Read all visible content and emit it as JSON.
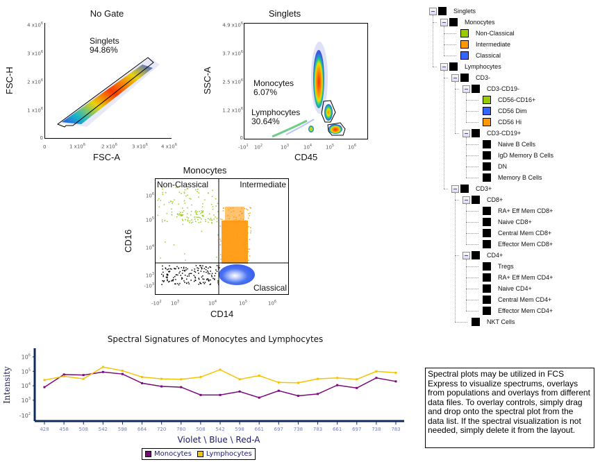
{
  "plots": {
    "no_gate": {
      "title": "No Gate",
      "x_label": "FSC-A",
      "y_label": "FSC-H",
      "x_ticks": [
        "0",
        "1 x10",
        "2 x10",
        "3 x10",
        "4 x10"
      ],
      "y_ticks": [
        "4 x10",
        "3 x10",
        "2 x10",
        "1 x10",
        "0"
      ],
      "exp": "6",
      "gate": {
        "name": "Singlets",
        "percent": "94.86%"
      }
    },
    "singlets": {
      "title": "Singlets",
      "x_label": "CD45",
      "y_label": "SSC-A",
      "x_ticks": [
        "-10",
        "10",
        "10",
        "10",
        "10",
        "10"
      ],
      "x_tick_exps": [
        "1",
        "2",
        "3",
        "4",
        "5",
        "6"
      ],
      "y_ticks": [
        "4.9 x10",
        "3.7 x10",
        "2.5 x10",
        "1.2 x10",
        "0"
      ],
      "exp": "6",
      "gates": [
        {
          "name": "Monocytes",
          "percent": "6.07%"
        },
        {
          "name": "Lymphocytes",
          "percent": "30.64%"
        }
      ]
    },
    "monocytes": {
      "title": "Monocytes",
      "x_label": "CD14",
      "y_label": "CD16",
      "x_ticks": [
        "-10",
        "10",
        "10",
        "10",
        "10"
      ],
      "x_tick_exps": [
        "2",
        "3",
        "4",
        "5",
        "6"
      ],
      "y_ticks": [
        "10",
        "10",
        "10",
        "10",
        "-10"
      ],
      "y_tick_exps": [
        "6",
        "5",
        "4",
        "3",
        "3"
      ],
      "quadrants": {
        "top_left": "Non-Classical",
        "top_right": "Intermediate",
        "bottom_right": "Classical"
      }
    }
  },
  "gate_tree": [
    {
      "label": "Singlets",
      "level": 0,
      "color": "#000000",
      "toggle": true
    },
    {
      "label": "Monocytes",
      "level": 1,
      "color": "#000000",
      "toggle": true
    },
    {
      "label": "Non-Classical",
      "level": 2,
      "color": "#99cc00",
      "toggle": false
    },
    {
      "label": "Intermediate",
      "level": 2,
      "color": "#ff9900",
      "toggle": false
    },
    {
      "label": "Classical",
      "level": 2,
      "color": "#3366ff",
      "toggle": false
    },
    {
      "label": "Lymphocytes",
      "level": 1,
      "color": "#000000",
      "toggle": true
    },
    {
      "label": "CD3-",
      "level": 2,
      "color": "#000000",
      "toggle": true
    },
    {
      "label": "CD3-CD19-",
      "level": 3,
      "color": "#000000",
      "toggle": true
    },
    {
      "label": "CD56-CD16+",
      "level": 4,
      "color": "#99cc00",
      "toggle": false
    },
    {
      "label": "CD56 Dim",
      "level": 4,
      "color": "#3366ff",
      "toggle": false
    },
    {
      "label": "CD56 Hi",
      "level": 4,
      "color": "#ff9900",
      "toggle": false
    },
    {
      "label": "CD3-CD19+",
      "level": 3,
      "color": "#000000",
      "toggle": true
    },
    {
      "label": "Naive B Cells",
      "level": 4,
      "color": "#000000",
      "toggle": false
    },
    {
      "label": "IgD Memory B Cells",
      "level": 4,
      "color": "#000000",
      "toggle": false
    },
    {
      "label": "DN",
      "level": 4,
      "color": "#000000",
      "toggle": false
    },
    {
      "label": "Memory B Cells",
      "level": 4,
      "color": "#000000",
      "toggle": false
    },
    {
      "label": "CD3+",
      "level": 2,
      "color": "#000000",
      "toggle": true
    },
    {
      "label": "CD8+",
      "level": 3,
      "color": "#000000",
      "toggle": true
    },
    {
      "label": "RA+ Eff Mem CD8+",
      "level": 4,
      "color": "#000000",
      "toggle": false
    },
    {
      "label": "Naive CD8+",
      "level": 4,
      "color": "#000000",
      "toggle": false
    },
    {
      "label": "Central Mem CD8+",
      "level": 4,
      "color": "#000000",
      "toggle": false
    },
    {
      "label": "Effector Mem CD8+",
      "level": 4,
      "color": "#000000",
      "toggle": false
    },
    {
      "label": "CD4+",
      "level": 3,
      "color": "#000000",
      "toggle": true
    },
    {
      "label": "Tregs",
      "level": 4,
      "color": "#000000",
      "toggle": false
    },
    {
      "label": "RA+ Eff Mem CD4+",
      "level": 4,
      "color": "#000000",
      "toggle": false
    },
    {
      "label": "Naive CD4+",
      "level": 4,
      "color": "#000000",
      "toggle": false
    },
    {
      "label": "Central Mem CD4+",
      "level": 4,
      "color": "#000000",
      "toggle": false
    },
    {
      "label": "Effector Mem CD4+",
      "level": 4,
      "color": "#000000",
      "toggle": false
    },
    {
      "label": "NKT Cells",
      "level": 3,
      "color": "#000000",
      "toggle": false
    }
  ],
  "note": "Spectral plots may be utilized in FCS Express to visualize spectrums, overlays from populations and overlays from different data files. To overlay controls, simply drag and drop onto the spectral plot from the data list. If the spectral visualization is not needed, simply delete it from the layout.",
  "chart_data": {
    "type": "line",
    "title": "Spectral Signatures of Monocytes and Lymphocytes",
    "xlabel": "Violet \\ Blue \\ Red-A",
    "ylabel": "Intensity",
    "y_scale": "log",
    "y_ticks": [
      "10^6",
      "10^5",
      "10^4",
      "10^3",
      "-10^2"
    ],
    "categories": [
      "428",
      "458",
      "508",
      "542",
      "598",
      "664",
      "720",
      "780",
      "508",
      "542",
      "598",
      "661",
      "697",
      "738",
      "783",
      "661",
      "697",
      "738",
      "783"
    ],
    "series": [
      {
        "name": "Monocytes",
        "color": "#7a0a7a",
        "values": [
          8000,
          60000,
          55000,
          90000,
          65000,
          15000,
          9000,
          8000,
          2300,
          2300,
          4000,
          1500,
          4500,
          2000,
          2700,
          11000,
          7000,
          35000,
          20000
        ]
      },
      {
        "name": "Lymphocytes",
        "color": "#f5c400",
        "values": [
          25000,
          45000,
          30000,
          200000,
          110000,
          40000,
          30000,
          28000,
          40000,
          130000,
          28000,
          50000,
          17000,
          16000,
          30000,
          35000,
          28000,
          100000,
          80000
        ]
      }
    ],
    "legend": [
      "Monocytes",
      "Lymphocytes"
    ],
    "legend_position": "bottom"
  }
}
